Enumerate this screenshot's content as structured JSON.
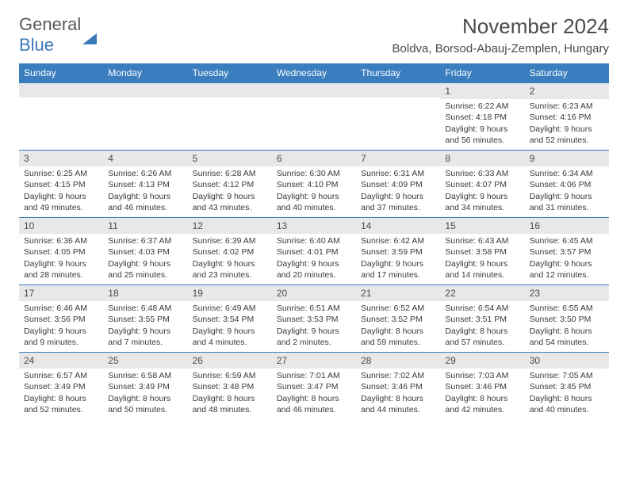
{
  "logo": {
    "general": "General",
    "blue": "Blue"
  },
  "title": "November 2024",
  "location": "Boldva, Borsod-Abauj-Zemplen, Hungary",
  "colors": {
    "header_bg": "#3a7ebf",
    "header_text": "#ffffff",
    "daynum_bg": "#e8e8e8",
    "border": "#3a7ebf",
    "text": "#3a3a3a",
    "logo_blue": "#3a7ab8"
  },
  "day_labels": [
    "Sunday",
    "Monday",
    "Tuesday",
    "Wednesday",
    "Thursday",
    "Friday",
    "Saturday"
  ],
  "weeks": [
    [
      {
        "n": "",
        "sr": "",
        "ss": "",
        "dl": ""
      },
      {
        "n": "",
        "sr": "",
        "ss": "",
        "dl": ""
      },
      {
        "n": "",
        "sr": "",
        "ss": "",
        "dl": ""
      },
      {
        "n": "",
        "sr": "",
        "ss": "",
        "dl": ""
      },
      {
        "n": "",
        "sr": "",
        "ss": "",
        "dl": ""
      },
      {
        "n": "1",
        "sr": "Sunrise: 6:22 AM",
        "ss": "Sunset: 4:18 PM",
        "dl": "Daylight: 9 hours and 56 minutes."
      },
      {
        "n": "2",
        "sr": "Sunrise: 6:23 AM",
        "ss": "Sunset: 4:16 PM",
        "dl": "Daylight: 9 hours and 52 minutes."
      }
    ],
    [
      {
        "n": "3",
        "sr": "Sunrise: 6:25 AM",
        "ss": "Sunset: 4:15 PM",
        "dl": "Daylight: 9 hours and 49 minutes."
      },
      {
        "n": "4",
        "sr": "Sunrise: 6:26 AM",
        "ss": "Sunset: 4:13 PM",
        "dl": "Daylight: 9 hours and 46 minutes."
      },
      {
        "n": "5",
        "sr": "Sunrise: 6:28 AM",
        "ss": "Sunset: 4:12 PM",
        "dl": "Daylight: 9 hours and 43 minutes."
      },
      {
        "n": "6",
        "sr": "Sunrise: 6:30 AM",
        "ss": "Sunset: 4:10 PM",
        "dl": "Daylight: 9 hours and 40 minutes."
      },
      {
        "n": "7",
        "sr": "Sunrise: 6:31 AM",
        "ss": "Sunset: 4:09 PM",
        "dl": "Daylight: 9 hours and 37 minutes."
      },
      {
        "n": "8",
        "sr": "Sunrise: 6:33 AM",
        "ss": "Sunset: 4:07 PM",
        "dl": "Daylight: 9 hours and 34 minutes."
      },
      {
        "n": "9",
        "sr": "Sunrise: 6:34 AM",
        "ss": "Sunset: 4:06 PM",
        "dl": "Daylight: 9 hours and 31 minutes."
      }
    ],
    [
      {
        "n": "10",
        "sr": "Sunrise: 6:36 AM",
        "ss": "Sunset: 4:05 PM",
        "dl": "Daylight: 9 hours and 28 minutes."
      },
      {
        "n": "11",
        "sr": "Sunrise: 6:37 AM",
        "ss": "Sunset: 4:03 PM",
        "dl": "Daylight: 9 hours and 25 minutes."
      },
      {
        "n": "12",
        "sr": "Sunrise: 6:39 AM",
        "ss": "Sunset: 4:02 PM",
        "dl": "Daylight: 9 hours and 23 minutes."
      },
      {
        "n": "13",
        "sr": "Sunrise: 6:40 AM",
        "ss": "Sunset: 4:01 PM",
        "dl": "Daylight: 9 hours and 20 minutes."
      },
      {
        "n": "14",
        "sr": "Sunrise: 6:42 AM",
        "ss": "Sunset: 3:59 PM",
        "dl": "Daylight: 9 hours and 17 minutes."
      },
      {
        "n": "15",
        "sr": "Sunrise: 6:43 AM",
        "ss": "Sunset: 3:58 PM",
        "dl": "Daylight: 9 hours and 14 minutes."
      },
      {
        "n": "16",
        "sr": "Sunrise: 6:45 AM",
        "ss": "Sunset: 3:57 PM",
        "dl": "Daylight: 9 hours and 12 minutes."
      }
    ],
    [
      {
        "n": "17",
        "sr": "Sunrise: 6:46 AM",
        "ss": "Sunset: 3:56 PM",
        "dl": "Daylight: 9 hours and 9 minutes."
      },
      {
        "n": "18",
        "sr": "Sunrise: 6:48 AM",
        "ss": "Sunset: 3:55 PM",
        "dl": "Daylight: 9 hours and 7 minutes."
      },
      {
        "n": "19",
        "sr": "Sunrise: 6:49 AM",
        "ss": "Sunset: 3:54 PM",
        "dl": "Daylight: 9 hours and 4 minutes."
      },
      {
        "n": "20",
        "sr": "Sunrise: 6:51 AM",
        "ss": "Sunset: 3:53 PM",
        "dl": "Daylight: 9 hours and 2 minutes."
      },
      {
        "n": "21",
        "sr": "Sunrise: 6:52 AM",
        "ss": "Sunset: 3:52 PM",
        "dl": "Daylight: 8 hours and 59 minutes."
      },
      {
        "n": "22",
        "sr": "Sunrise: 6:54 AM",
        "ss": "Sunset: 3:51 PM",
        "dl": "Daylight: 8 hours and 57 minutes."
      },
      {
        "n": "23",
        "sr": "Sunrise: 6:55 AM",
        "ss": "Sunset: 3:50 PM",
        "dl": "Daylight: 8 hours and 54 minutes."
      }
    ],
    [
      {
        "n": "24",
        "sr": "Sunrise: 6:57 AM",
        "ss": "Sunset: 3:49 PM",
        "dl": "Daylight: 8 hours and 52 minutes."
      },
      {
        "n": "25",
        "sr": "Sunrise: 6:58 AM",
        "ss": "Sunset: 3:49 PM",
        "dl": "Daylight: 8 hours and 50 minutes."
      },
      {
        "n": "26",
        "sr": "Sunrise: 6:59 AM",
        "ss": "Sunset: 3:48 PM",
        "dl": "Daylight: 8 hours and 48 minutes."
      },
      {
        "n": "27",
        "sr": "Sunrise: 7:01 AM",
        "ss": "Sunset: 3:47 PM",
        "dl": "Daylight: 8 hours and 46 minutes."
      },
      {
        "n": "28",
        "sr": "Sunrise: 7:02 AM",
        "ss": "Sunset: 3:46 PM",
        "dl": "Daylight: 8 hours and 44 minutes."
      },
      {
        "n": "29",
        "sr": "Sunrise: 7:03 AM",
        "ss": "Sunset: 3:46 PM",
        "dl": "Daylight: 8 hours and 42 minutes."
      },
      {
        "n": "30",
        "sr": "Sunrise: 7:05 AM",
        "ss": "Sunset: 3:45 PM",
        "dl": "Daylight: 8 hours and 40 minutes."
      }
    ]
  ]
}
